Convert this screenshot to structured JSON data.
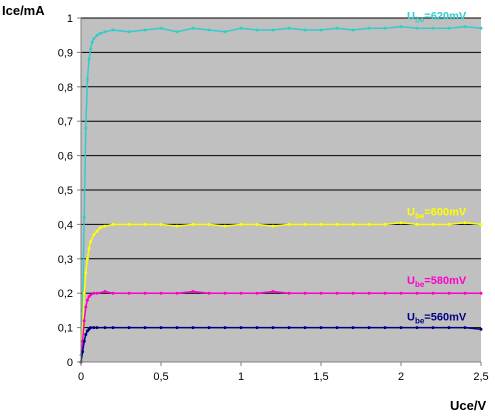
{
  "chart_data": {
    "type": "line",
    "ylabel": "Ice/mA",
    "xlabel": "Uce/V",
    "xlim": [
      0,
      2.5
    ],
    "ylim": [
      0,
      1
    ],
    "x_ticks": [
      "0",
      "0,5",
      "1",
      "1,5",
      "2",
      "2,5"
    ],
    "y_ticks": [
      "0",
      "0,1",
      "0,2",
      "0,3",
      "0,4",
      "0,5",
      "0,6",
      "0,7",
      "0,8",
      "0,9",
      "1"
    ],
    "grid": "horizontal",
    "plot_background": "#c0c0c0",
    "series": [
      {
        "name": "Ube=620mV",
        "label_main": "U",
        "label_sub": "be",
        "label_rest": "=620mV",
        "color": "#33cccc",
        "x": [
          0,
          0.01,
          0.02,
          0.03,
          0.04,
          0.05,
          0.06,
          0.07,
          0.08,
          0.1,
          0.12,
          0.15,
          0.2,
          0.3,
          0.4,
          0.5,
          0.6,
          0.7,
          0.8,
          0.9,
          1.0,
          1.1,
          1.2,
          1.3,
          1.4,
          1.5,
          1.6,
          1.7,
          1.8,
          1.9,
          2.0,
          2.1,
          2.2,
          2.3,
          2.4,
          2.5
        ],
        "y": [
          0.02,
          0.15,
          0.42,
          0.68,
          0.82,
          0.88,
          0.91,
          0.93,
          0.94,
          0.95,
          0.955,
          0.96,
          0.965,
          0.96,
          0.965,
          0.97,
          0.96,
          0.97,
          0.965,
          0.96,
          0.97,
          0.965,
          0.965,
          0.97,
          0.965,
          0.965,
          0.97,
          0.965,
          0.97,
          0.97,
          0.975,
          0.97,
          0.97,
          0.97,
          0.975,
          0.97
        ]
      },
      {
        "name": "Ube=600mV",
        "label_main": "U",
        "label_sub": "be",
        "label_rest": "=600mV",
        "color": "#ffff00",
        "x": [
          0,
          0.01,
          0.02,
          0.03,
          0.04,
          0.05,
          0.06,
          0.08,
          0.1,
          0.12,
          0.15,
          0.2,
          0.3,
          0.4,
          0.5,
          0.6,
          0.7,
          0.8,
          0.9,
          1.0,
          1.1,
          1.2,
          1.3,
          1.4,
          1.5,
          1.6,
          1.7,
          1.8,
          1.9,
          2.0,
          2.1,
          2.2,
          2.3,
          2.4,
          2.5
        ],
        "y": [
          0.01,
          0.1,
          0.2,
          0.26,
          0.3,
          0.33,
          0.35,
          0.37,
          0.38,
          0.39,
          0.395,
          0.4,
          0.4,
          0.4,
          0.4,
          0.395,
          0.4,
          0.4,
          0.395,
          0.4,
          0.4,
          0.395,
          0.4,
          0.4,
          0.4,
          0.4,
          0.4,
          0.4,
          0.4,
          0.405,
          0.4,
          0.4,
          0.4,
          0.405,
          0.4
        ]
      },
      {
        "name": "Ube=580mV",
        "label_main": "U",
        "label_sub": "be",
        "label_rest": "=580mV",
        "color": "#ff00cc",
        "x": [
          0,
          0.01,
          0.02,
          0.03,
          0.04,
          0.05,
          0.06,
          0.08,
          0.1,
          0.15,
          0.2,
          0.3,
          0.4,
          0.5,
          0.6,
          0.7,
          0.8,
          0.9,
          1.0,
          1.1,
          1.2,
          1.3,
          1.4,
          1.5,
          1.6,
          1.7,
          1.8,
          1.9,
          2.0,
          2.1,
          2.2,
          2.3,
          2.4,
          2.5
        ],
        "y": [
          0.0,
          0.06,
          0.12,
          0.16,
          0.18,
          0.19,
          0.195,
          0.2,
          0.2,
          0.205,
          0.2,
          0.2,
          0.2,
          0.2,
          0.2,
          0.205,
          0.2,
          0.2,
          0.2,
          0.2,
          0.205,
          0.2,
          0.2,
          0.2,
          0.2,
          0.2,
          0.2,
          0.2,
          0.2,
          0.2,
          0.2,
          0.2,
          0.2,
          0.2
        ]
      },
      {
        "name": "Ube=560mV",
        "label_main": "U",
        "label_sub": "be",
        "label_rest": "=560mV",
        "color": "#000080",
        "x": [
          0,
          0.01,
          0.02,
          0.03,
          0.04,
          0.05,
          0.06,
          0.08,
          0.1,
          0.15,
          0.2,
          0.3,
          0.4,
          0.5,
          0.6,
          0.7,
          0.8,
          0.9,
          1.0,
          1.1,
          1.2,
          1.3,
          1.4,
          1.5,
          1.6,
          1.7,
          1.8,
          1.9,
          2.0,
          2.1,
          2.2,
          2.3,
          2.4,
          2.5
        ],
        "y": [
          0.0,
          0.03,
          0.06,
          0.08,
          0.09,
          0.095,
          0.1,
          0.1,
          0.1,
          0.1,
          0.1,
          0.1,
          0.1,
          0.1,
          0.1,
          0.1,
          0.1,
          0.1,
          0.1,
          0.1,
          0.1,
          0.1,
          0.1,
          0.1,
          0.1,
          0.1,
          0.1,
          0.1,
          0.1,
          0.1,
          0.1,
          0.1,
          0.1,
          0.095
        ]
      }
    ]
  }
}
